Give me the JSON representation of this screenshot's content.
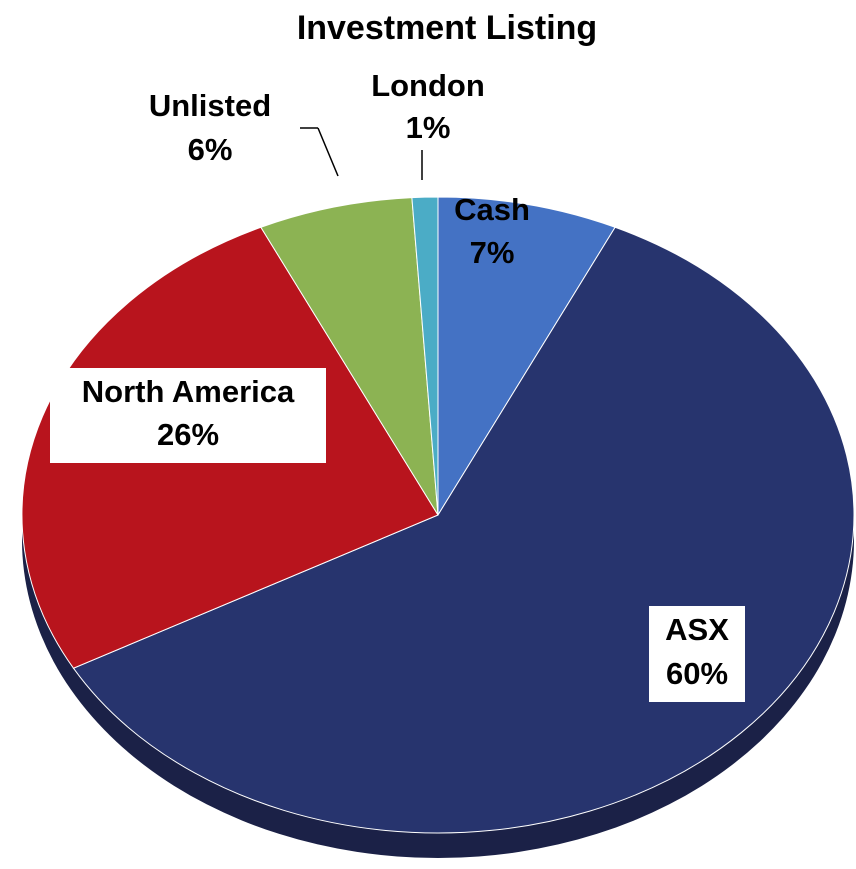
{
  "chart_data": {
    "type": "pie",
    "title": "Investment Listing",
    "categories": [
      "Cash",
      "ASX",
      "North America",
      "Unlisted",
      "London"
    ],
    "values": [
      7,
      60,
      26,
      6,
      1
    ],
    "value_labels": [
      "7%",
      "60%",
      "26%",
      "6%",
      "1%"
    ],
    "colors": [
      "#4472c4",
      "#27346e",
      "#b8141d",
      "#8cb353",
      "#4bacc6"
    ]
  }
}
